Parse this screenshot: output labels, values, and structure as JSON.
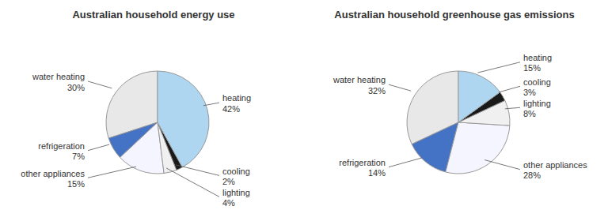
{
  "chart_data": [
    {
      "type": "pie",
      "title": "Australian household energy use",
      "categories": [
        "water heating",
        "refrigeration",
        "other appliances",
        "lighting",
        "cooling",
        "heating"
      ],
      "values": [
        30,
        7,
        15,
        4,
        2,
        42
      ],
      "value_labels": [
        "30%",
        "7%",
        "15%",
        "4%",
        "2%",
        "42%"
      ],
      "colors": [
        "#e8e8e8",
        "#4472c4",
        "#f5f5ff",
        "#f0f0f0",
        "#1a1a1a",
        "#aed6f1"
      ],
      "data_labels": true
    },
    {
      "type": "pie",
      "title": "Australian household greenhouse gas emissions",
      "categories": [
        "water heating",
        "refrigeration",
        "other appliances",
        "lighting",
        "cooling",
        "heating"
      ],
      "values": [
        32,
        14,
        28,
        8,
        3,
        15
      ],
      "value_labels": [
        "32%",
        "14%",
        "28%",
        "8%",
        "3%",
        "15%"
      ],
      "colors": [
        "#e8e8e8",
        "#4472c4",
        "#f5f5ff",
        "#f0f0f0",
        "#1a1a1a",
        "#aed6f1"
      ],
      "data_labels": true
    }
  ]
}
